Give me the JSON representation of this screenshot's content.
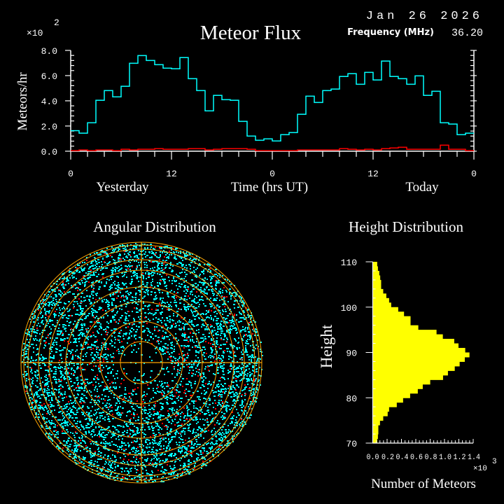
{
  "header": {
    "title": "Meteor Flux",
    "date": "Jan 26 2026",
    "frequency_label": "Frequency (MHz)",
    "frequency_value": "36.20"
  },
  "chart_data": [
    {
      "type": "line",
      "step": true,
      "title": "Meteor Flux",
      "xlabel": "Time (hrs UT)",
      "ylabel": "Meteors/hr",
      "y_multiplier": "×10",
      "y_multiplier_exp": "2",
      "ylim": [
        0,
        8
      ],
      "xlim": [
        0,
        48
      ],
      "x_tick_labels": [
        "0",
        "12",
        "0",
        "12",
        "0"
      ],
      "y_tick_labels": [
        "0.0",
        "2.0",
        "4.0",
        "6.0",
        "8.0"
      ],
      "day_labels": [
        "Yesterday",
        "Today"
      ],
      "series": [
        {
          "color": "#00ffff",
          "values": [
            1.63,
            1.43,
            2.26,
            4.04,
            4.81,
            4.31,
            5.15,
            6.98,
            7.59,
            7.2,
            6.87,
            6.59,
            6.54,
            7.43,
            5.76,
            4.81,
            3.2,
            4.43,
            4.09,
            4.04,
            2.37,
            1.2,
            0.87,
            0.98,
            0.81,
            1.31,
            1.48,
            2.93,
            4.37,
            3.87,
            4.81,
            4.93,
            5.93,
            6.15,
            5.31,
            6.26,
            5.65,
            7.15,
            5.93,
            5.76,
            5.31,
            5.98,
            4.43,
            4.76,
            2.26,
            2.15,
            1.31,
            1.43
          ]
        },
        {
          "color": "#ff0000",
          "values": [
            0.04,
            0.1,
            0.04,
            0.1,
            0.1,
            0.04,
            0.15,
            0.1,
            0.15,
            0.15,
            0.2,
            0.15,
            0.15,
            0.15,
            0.2,
            0.2,
            0.1,
            0.15,
            0.2,
            0.2,
            0.2,
            0.15,
            0.04,
            0.04,
            0.04,
            0.04,
            0.04,
            0.1,
            0.1,
            0.1,
            0.1,
            0.1,
            0.2,
            0.15,
            0.1,
            0.15,
            0.1,
            0.2,
            0.26,
            0.31,
            0.15,
            0.15,
            0.15,
            0.15,
            0.48,
            0.15,
            0.15,
            0.04
          ]
        }
      ]
    },
    {
      "type": "scatter",
      "title": "Angular Distribution",
      "polar": true,
      "colors": {
        "grid": "#ffa500",
        "points": "#00ffff",
        "highlight": "#ff0000"
      }
    },
    {
      "type": "bar",
      "orientation": "horizontal",
      "title": "Height Distribution",
      "xlabel": "Number of Meteors",
      "ylabel": "Height",
      "x_multiplier": "×10",
      "x_multiplier_exp": "3",
      "xlim": [
        0,
        1.4
      ],
      "ylim": [
        70,
        110
      ],
      "x_tick_labels": [
        "0.0",
        "0.2",
        "0.4",
        "0.6",
        "0.8",
        "1.0",
        "1.2",
        "1.4"
      ],
      "y_tick_labels": [
        "70",
        "80",
        "90",
        "100",
        "110"
      ],
      "color": "#ffff00",
      "bin_start": 70,
      "bin_width": 1,
      "values": [
        0.062,
        0.072,
        0.078,
        0.078,
        0.101,
        0.146,
        0.208,
        0.228,
        0.335,
        0.423,
        0.521,
        0.628,
        0.697,
        0.801,
        0.98,
        1.048,
        1.143,
        1.211,
        1.283,
        1.348,
        1.289,
        1.195,
        1.136,
        0.977,
        0.889,
        0.635,
        0.527,
        0.527,
        0.436,
        0.355,
        0.257,
        0.228,
        0.189,
        0.146,
        0.117,
        0.117,
        0.104,
        0.091,
        0.072,
        0.062
      ]
    }
  ]
}
